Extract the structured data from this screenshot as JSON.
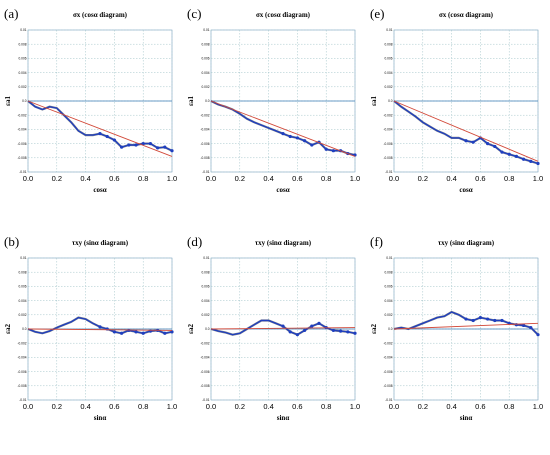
{
  "chart_data": [
    {
      "panel": "(a)",
      "type": "line",
      "title": "σx (cosα diagram)",
      "xlabel": "cosα",
      "ylabel": "εa1",
      "xlim": [
        0,
        1
      ],
      "ylim": [
        -0.01,
        0.01
      ],
      "xticks": [
        "0.0",
        "0.2",
        "0.4",
        "0.6",
        "0.8",
        "1.0"
      ],
      "yticks": [
        "0.01",
        "0.008",
        "0.006",
        "0.004",
        "0.002",
        "0.0",
        "-0.002",
        "-0.004",
        "-0.006",
        "-0.008",
        "-0.01"
      ],
      "grid": true,
      "series": [
        {
          "kind": "measured",
          "color": "#1f3fbf",
          "x": [
            0,
            0.05,
            0.1,
            0.15,
            0.2,
            0.25,
            0.3,
            0.35,
            0.4,
            0.45,
            0.5,
            0.55,
            0.6,
            0.65,
            0.7,
            0.75,
            0.8,
            0.85,
            0.9,
            0.95,
            1.0
          ],
          "y": [
            0.0,
            -0.0008,
            -0.0012,
            -0.0008,
            -0.001,
            -0.002,
            -0.003,
            -0.0042,
            -0.0048,
            -0.0048,
            -0.0046,
            -0.005,
            -0.0055,
            -0.0065,
            -0.0062,
            -0.0062,
            -0.006,
            -0.006,
            -0.0066,
            -0.0065,
            -0.007
          ]
        },
        {
          "kind": "fit",
          "color": "#d24a3a",
          "x": [
            0,
            1
          ],
          "y": [
            0.0,
            -0.0078
          ]
        }
      ]
    },
    {
      "panel": "(c)",
      "type": "line",
      "title": "σx (cosα diagram)",
      "xlabel": "cosα",
      "ylabel": "εa1",
      "xlim": [
        0,
        1
      ],
      "ylim": [
        -0.01,
        0.01
      ],
      "xticks": [
        "0.0",
        "0.2",
        "0.4",
        "0.6",
        "0.8",
        "1.0"
      ],
      "yticks": [
        "0.01",
        "0.008",
        "0.006",
        "0.004",
        "0.002",
        "0.0",
        "-0.002",
        "-0.004",
        "-0.006",
        "-0.008",
        "-0.01"
      ],
      "grid": true,
      "series": [
        {
          "kind": "measured",
          "color": "#1f3fbf",
          "x": [
            0,
            0.05,
            0.1,
            0.15,
            0.2,
            0.25,
            0.3,
            0.35,
            0.4,
            0.45,
            0.5,
            0.55,
            0.6,
            0.65,
            0.7,
            0.75,
            0.8,
            0.85,
            0.9,
            0.95,
            1.0
          ],
          "y": [
            0.0,
            -0.0005,
            -0.0008,
            -0.0012,
            -0.0018,
            -0.0025,
            -0.003,
            -0.0034,
            -0.0038,
            -0.0042,
            -0.0046,
            -0.005,
            -0.0052,
            -0.0056,
            -0.0062,
            -0.0058,
            -0.0068,
            -0.007,
            -0.007,
            -0.0074,
            -0.0076
          ]
        },
        {
          "kind": "fit",
          "color": "#d24a3a",
          "x": [
            0,
            1
          ],
          "y": [
            0.0,
            -0.0078
          ]
        }
      ]
    },
    {
      "panel": "(e)",
      "type": "line",
      "title": "σx (cosα diagram)",
      "xlabel": "cosα",
      "ylabel": "εa1",
      "xlim": [
        0,
        1
      ],
      "ylim": [
        -0.01,
        0.01
      ],
      "xticks": [
        "0.0",
        "0.2",
        "0.4",
        "0.6",
        "0.8",
        "1.0"
      ],
      "yticks": [
        "0.01",
        "0.008",
        "0.006",
        "0.004",
        "0.002",
        "0.0",
        "-0.002",
        "-0.004",
        "-0.006",
        "-0.008",
        "-0.01"
      ],
      "grid": true,
      "series": [
        {
          "kind": "measured",
          "color": "#1f3fbf",
          "x": [
            0,
            0.05,
            0.1,
            0.15,
            0.2,
            0.25,
            0.3,
            0.35,
            0.4,
            0.45,
            0.5,
            0.55,
            0.6,
            0.65,
            0.7,
            0.75,
            0.8,
            0.85,
            0.9,
            0.95,
            1.0
          ],
          "y": [
            0.0,
            -0.0008,
            -0.0015,
            -0.0022,
            -0.003,
            -0.0036,
            -0.0042,
            -0.0046,
            -0.0052,
            -0.0052,
            -0.0056,
            -0.0058,
            -0.0052,
            -0.006,
            -0.0064,
            -0.0072,
            -0.0075,
            -0.0078,
            -0.0082,
            -0.0085,
            -0.0088
          ]
        },
        {
          "kind": "fit",
          "color": "#d24a3a",
          "x": [
            0,
            1
          ],
          "y": [
            0.0,
            -0.0085
          ]
        }
      ]
    },
    {
      "panel": "(b)",
      "type": "line",
      "title": "τxy (sinα diagram)",
      "xlabel": "sinα",
      "ylabel": "εa2",
      "xlim": [
        0,
        1
      ],
      "ylim": [
        -0.01,
        0.01
      ],
      "xticks": [
        "0.0",
        "0.2",
        "0.4",
        "0.6",
        "0.8",
        "1.0"
      ],
      "yticks": [
        "0.01",
        "0.008",
        "0.006",
        "0.004",
        "0.002",
        "0.0",
        "-0.002",
        "-0.004",
        "-0.006",
        "-0.008",
        "-0.01"
      ],
      "grid": true,
      "series": [
        {
          "kind": "measured",
          "color": "#1f3fbf",
          "x": [
            0,
            0.05,
            0.1,
            0.15,
            0.2,
            0.25,
            0.3,
            0.35,
            0.4,
            0.45,
            0.5,
            0.55,
            0.6,
            0.65,
            0.7,
            0.75,
            0.8,
            0.85,
            0.9,
            0.95,
            1.0
          ],
          "y": [
            0.0,
            -0.0004,
            -0.0006,
            -0.0003,
            0.0002,
            0.0006,
            0.001,
            0.0016,
            0.0014,
            0.0008,
            0.0003,
            0.0,
            -0.0004,
            -0.0006,
            -0.0002,
            -0.0004,
            -0.0006,
            -0.0003,
            -0.0002,
            -0.0006,
            -0.0004
          ]
        },
        {
          "kind": "fit",
          "color": "#d24a3a",
          "x": [
            0,
            1
          ],
          "y": [
            0.0,
            -0.0002
          ]
        }
      ]
    },
    {
      "panel": "(d)",
      "type": "line",
      "title": "τxy (sinα diagram)",
      "xlabel": "sinα",
      "ylabel": "εa2",
      "xlim": [
        0,
        1
      ],
      "ylim": [
        -0.01,
        0.01
      ],
      "xticks": [
        "0.0",
        "0.2",
        "0.4",
        "0.6",
        "0.8",
        "1.0"
      ],
      "yticks": [
        "0.01",
        "0.008",
        "0.006",
        "0.004",
        "0.002",
        "0.0",
        "-0.002",
        "-0.004",
        "-0.006",
        "-0.008",
        "-0.01"
      ],
      "grid": true,
      "series": [
        {
          "kind": "measured",
          "color": "#1f3fbf",
          "x": [
            0,
            0.05,
            0.1,
            0.15,
            0.2,
            0.25,
            0.3,
            0.35,
            0.4,
            0.45,
            0.5,
            0.55,
            0.6,
            0.65,
            0.7,
            0.75,
            0.8,
            0.85,
            0.9,
            0.95,
            1.0
          ],
          "y": [
            0.0,
            -0.0003,
            -0.0005,
            -0.0008,
            -0.0006,
            0.0,
            0.0006,
            0.0012,
            0.0012,
            0.0008,
            0.0004,
            -0.0004,
            -0.0008,
            -0.0002,
            0.0004,
            0.0008,
            0.0002,
            -0.0002,
            -0.0003,
            -0.0004,
            -0.0006
          ]
        },
        {
          "kind": "fit",
          "color": "#d24a3a",
          "x": [
            0,
            1
          ],
          "y": [
            0.0,
            0.0002
          ]
        }
      ]
    },
    {
      "panel": "(f)",
      "type": "line",
      "title": "τxy (sinα diagram)",
      "xlabel": "sinα",
      "ylabel": "εa2",
      "xlim": [
        0,
        1
      ],
      "ylim": [
        -0.01,
        0.01
      ],
      "xticks": [
        "0.0",
        "0.2",
        "0.4",
        "0.6",
        "0.8",
        "1.0"
      ],
      "yticks": [
        "0.01",
        "0.008",
        "0.006",
        "0.004",
        "0.002",
        "0.0",
        "-0.002",
        "-0.004",
        "-0.006",
        "-0.008",
        "-0.01"
      ],
      "grid": true,
      "series": [
        {
          "kind": "measured",
          "color": "#1f3fbf",
          "x": [
            0,
            0.05,
            0.1,
            0.15,
            0.2,
            0.25,
            0.3,
            0.35,
            0.4,
            0.45,
            0.5,
            0.55,
            0.6,
            0.65,
            0.7,
            0.75,
            0.8,
            0.85,
            0.9,
            0.95,
            1.0
          ],
          "y": [
            0.0,
            0.0002,
            0.0,
            0.0004,
            0.0008,
            0.0012,
            0.0016,
            0.0018,
            0.0024,
            0.002,
            0.0014,
            0.0012,
            0.0016,
            0.0014,
            0.0012,
            0.0012,
            0.0008,
            0.0006,
            0.0005,
            0.0002,
            -0.0008
          ]
        },
        {
          "kind": "fit",
          "color": "#d24a3a",
          "x": [
            0,
            1
          ],
          "y": [
            0.0,
            0.0008
          ]
        }
      ]
    }
  ]
}
